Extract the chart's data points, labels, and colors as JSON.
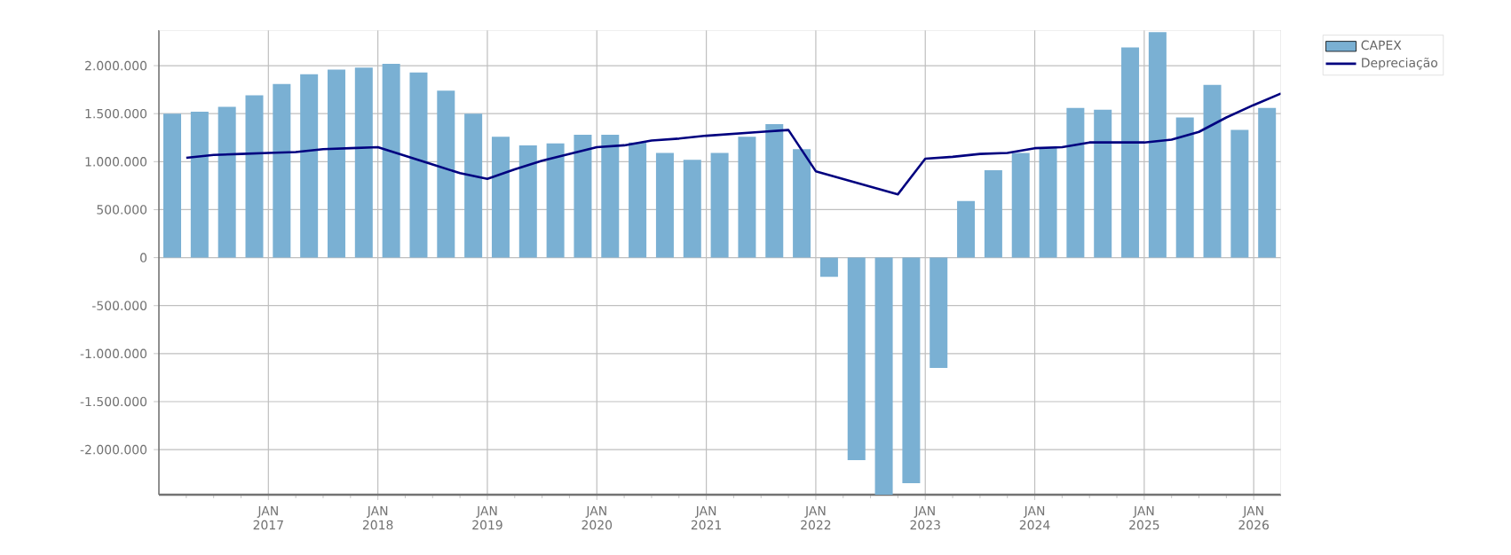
{
  "chart_data": {
    "type": "bar",
    "x": [
      "2016-02-15",
      "2016-05-15",
      "2016-08-15",
      "2016-11-15",
      "2017-02-15",
      "2017-05-15",
      "2017-08-15",
      "2017-11-15",
      "2018-02-15",
      "2018-05-15",
      "2018-08-15",
      "2018-11-15",
      "2019-02-15",
      "2019-05-15",
      "2019-08-15",
      "2019-11-15",
      "2020-02-15",
      "2020-05-15",
      "2020-08-15",
      "2020-11-15",
      "2021-02-15",
      "2021-05-15",
      "2021-08-15",
      "2021-11-15",
      "2022-02-15",
      "2022-05-15",
      "2022-08-15",
      "2022-11-15",
      "2023-02-15",
      "2023-05-15",
      "2023-08-15",
      "2023-11-15",
      "2024-02-15",
      "2024-05-15",
      "2024-08-15",
      "2024-11-15",
      "2025-02-15",
      "2025-05-15",
      "2025-08-15",
      "2025-11-15",
      "2026-02-15"
    ],
    "series": [
      {
        "name": "CAPEX",
        "color": "#7ab0d3",
        "values": [
          1500000,
          1520000,
          1570000,
          1690000,
          1810000,
          1910000,
          1960000,
          1980000,
          2020000,
          1930000,
          1740000,
          1500000,
          1260000,
          1170000,
          1190000,
          1280000,
          1280000,
          1200000,
          1090000,
          1020000,
          1090000,
          1260000,
          1390000,
          1130000,
          -200000,
          -2110000,
          -2470000,
          -2350000,
          -1150000,
          590000,
          910000,
          1090000,
          1150000,
          1560000,
          1540000,
          2190000,
          2350000,
          1460000,
          1800000,
          1330000,
          1560000
        ]
      },
      {
        "name": "Depreciação",
        "type": "line",
        "color": "#00007f",
        "x": [
          "2016-04",
          "2016-07",
          "2016-10",
          "2017-01",
          "2017-04",
          "2017-07",
          "2017-10",
          "2018-01",
          "2018-04",
          "2018-07",
          "2018-10",
          "2019-01",
          "2019-04",
          "2019-07",
          "2019-10",
          "2020-01",
          "2020-04",
          "2020-07",
          "2020-10",
          "2021-01",
          "2021-04",
          "2021-07",
          "2021-10",
          "2022-01",
          "2022-10",
          "2023-01",
          "2023-04",
          "2023-07",
          "2023-10",
          "2024-01",
          "2024-04",
          "2024-07",
          "2024-10",
          "2025-01",
          "2025-04",
          "2025-07",
          "2025-10",
          "2026-01",
          "2026-04"
        ],
        "values": [
          1040000,
          1070000,
          1080000,
          1090000,
          1100000,
          1130000,
          1140000,
          1150000,
          1060000,
          970000,
          880000,
          820000,
          920000,
          1010000,
          1080000,
          1150000,
          1170000,
          1220000,
          1240000,
          1270000,
          1290000,
          1310000,
          1330000,
          900000,
          660000,
          1030000,
          1050000,
          1080000,
          1090000,
          1140000,
          1150000,
          1200000,
          1200000,
          1200000,
          1230000,
          1310000,
          1460000,
          1590000,
          1710000
        ]
      }
    ],
    "xlim": [
      "2016-01",
      "2026-04"
    ],
    "xticks": [
      {
        "value": "2016-04",
        "label": null
      },
      {
        "value": "2016-07",
        "label": null
      },
      {
        "value": "2016-10",
        "label": null
      },
      {
        "value": "2017-01",
        "label": "JAN 2017"
      },
      {
        "value": "2017-04",
        "label": null
      },
      {
        "value": "2017-07",
        "label": null
      },
      {
        "value": "2017-10",
        "label": null
      },
      {
        "value": "2018-01",
        "label": "JAN 2018"
      },
      {
        "value": "2018-04",
        "label": null
      },
      {
        "value": "2018-07",
        "label": null
      },
      {
        "value": "2018-10",
        "label": null
      },
      {
        "value": "2019-01",
        "label": "JAN 2019"
      },
      {
        "value": "2019-04",
        "label": null
      },
      {
        "value": "2019-07",
        "label": null
      },
      {
        "value": "2019-10",
        "label": null
      },
      {
        "value": "2020-01",
        "label": "JAN 2020"
      },
      {
        "value": "2020-04",
        "label": null
      },
      {
        "value": "2020-07",
        "label": null
      },
      {
        "value": "2020-10",
        "label": null
      },
      {
        "value": "2021-01",
        "label": "JAN 2021"
      },
      {
        "value": "2021-04",
        "label": null
      },
      {
        "value": "2021-07",
        "label": null
      },
      {
        "value": "2021-10",
        "label": null
      },
      {
        "value": "2022-01",
        "label": "JAN 2022"
      },
      {
        "value": "2022-04",
        "label": null
      },
      {
        "value": "2022-07",
        "label": null
      },
      {
        "value": "2022-10",
        "label": null
      },
      {
        "value": "2023-01",
        "label": "JAN 2023"
      },
      {
        "value": "2023-04",
        "label": null
      },
      {
        "value": "2023-07",
        "label": null
      },
      {
        "value": "2023-10",
        "label": null
      },
      {
        "value": "2024-01",
        "label": "JAN 2024"
      },
      {
        "value": "2024-04",
        "label": null
      },
      {
        "value": "2024-07",
        "label": null
      },
      {
        "value": "2024-10",
        "label": null
      },
      {
        "value": "2025-01",
        "label": "JAN 2025"
      },
      {
        "value": "2025-04",
        "label": null
      },
      {
        "value": "2025-07",
        "label": null
      },
      {
        "value": "2025-10",
        "label": null
      },
      {
        "value": "2026-01",
        "label": "JAN 2026"
      }
    ],
    "ylim": [
      -2470000,
      2370000
    ],
    "yticks": [
      {
        "value": -2000000,
        "label": "-2.000.000"
      },
      {
        "value": -1500000,
        "label": "-1.500.000"
      },
      {
        "value": -1000000,
        "label": "-1.000.000"
      },
      {
        "value": -500000,
        "label": "-500.000"
      },
      {
        "value": 0,
        "label": "0"
      },
      {
        "value": 500000,
        "label": "500.000"
      },
      {
        "value": 1000000,
        "label": "1.000.000"
      },
      {
        "value": 1500000,
        "label": "1.500.000"
      },
      {
        "value": 2000000,
        "label": "2.000.000"
      }
    ],
    "grid": true,
    "legend": "top right"
  }
}
